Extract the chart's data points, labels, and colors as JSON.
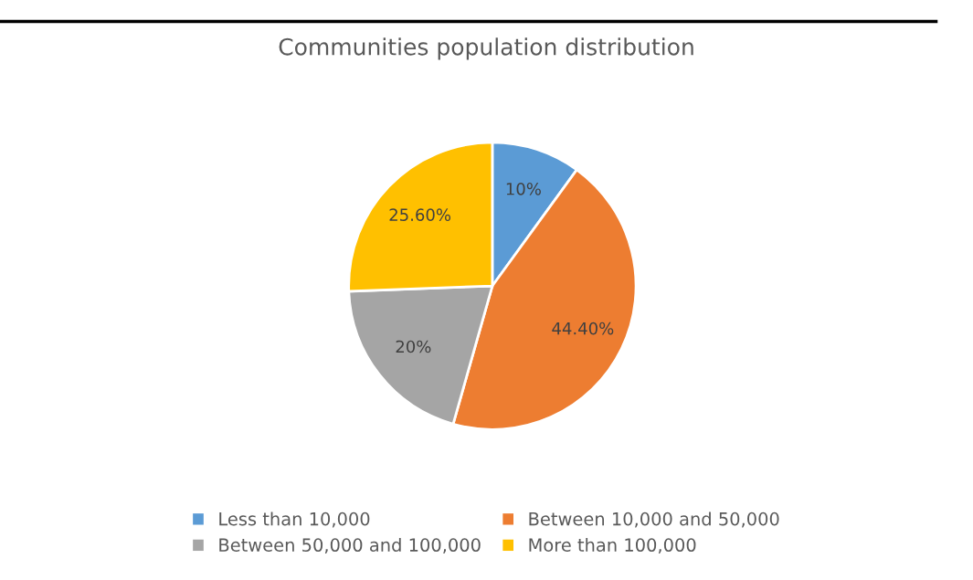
{
  "chart_data": {
    "type": "pie",
    "title": "Communities population distribution",
    "categories": [
      "Less than 10,000",
      "Between 10,000 and 50,000",
      "Between 50,000 and 100,000",
      "More than 100,000"
    ],
    "values": [
      10,
      44.4,
      20,
      25.6
    ],
    "colors": [
      "#5b9bd5",
      "#ed7d31",
      "#a5a5a5",
      "#ffc000"
    ],
    "value_labels": [
      "10%",
      "44.40%",
      "20%",
      "25.60%"
    ],
    "legend": "bottom"
  }
}
